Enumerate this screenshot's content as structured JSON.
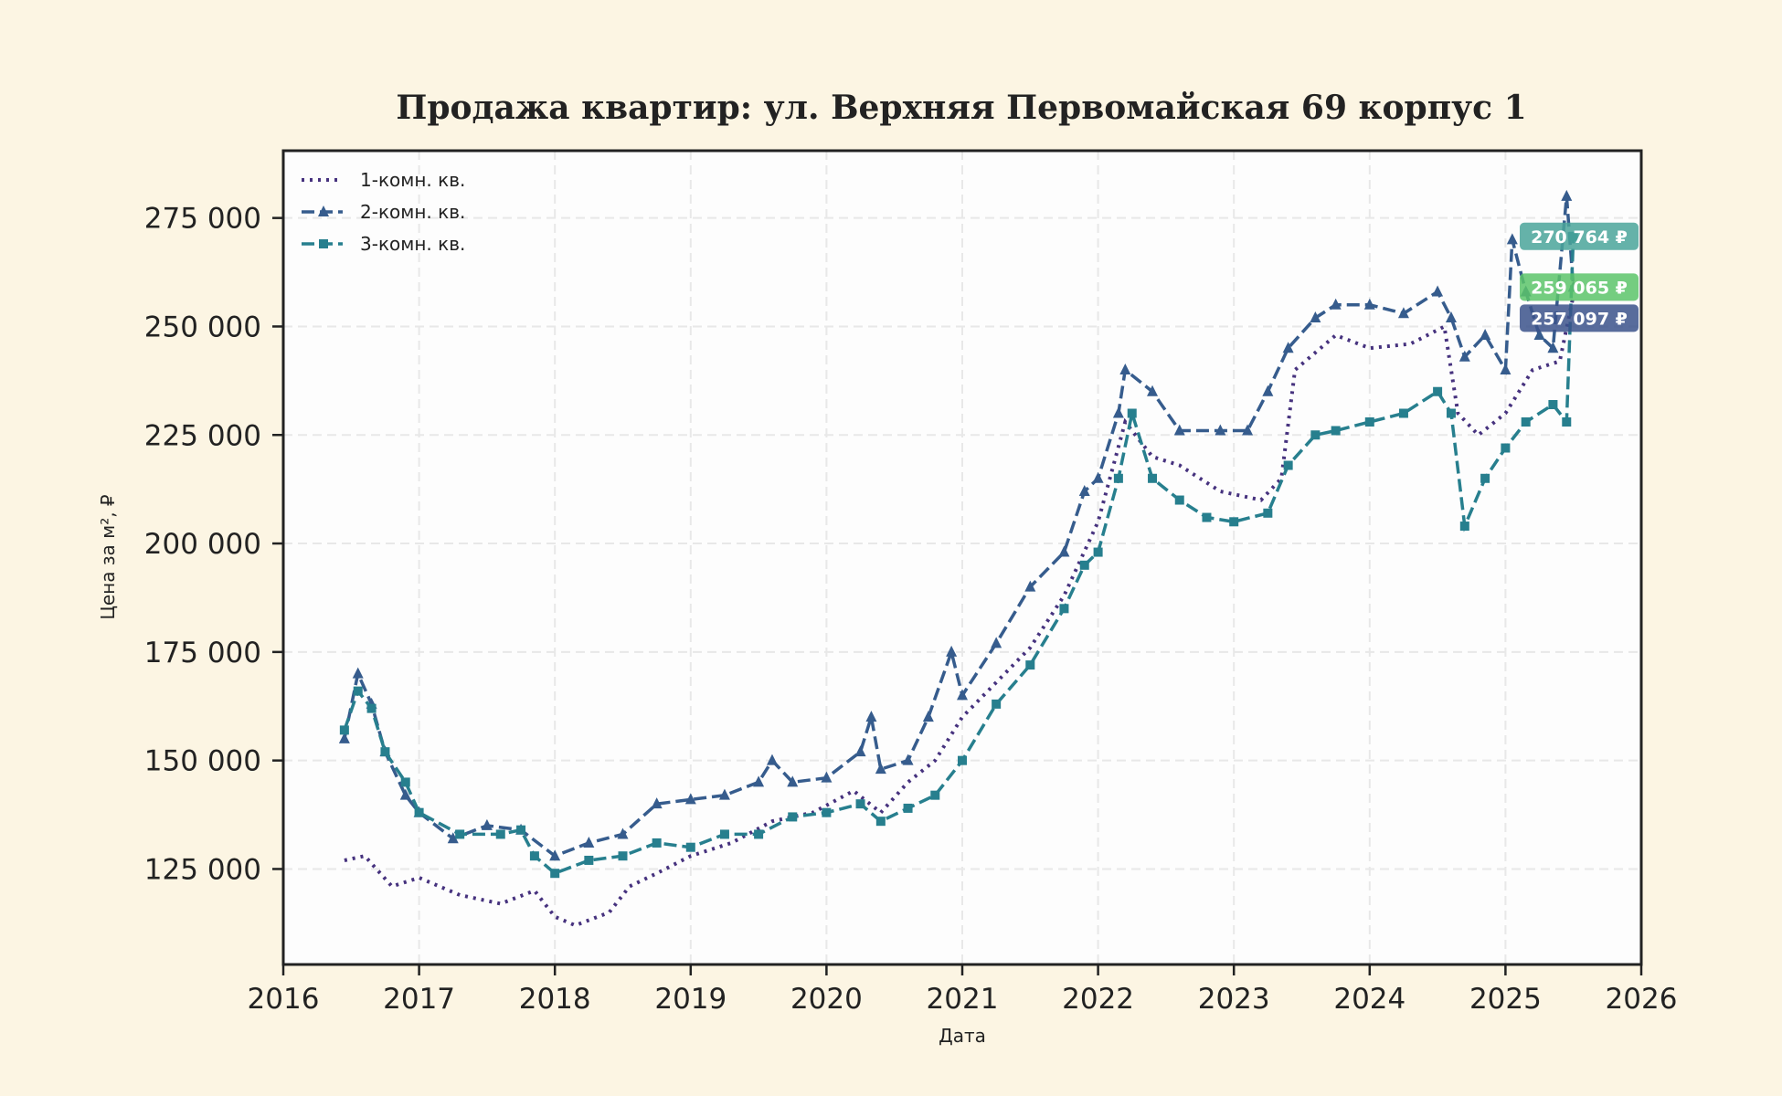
{
  "chart_data": {
    "type": "line",
    "title": "Продажа квартир: ул. Верхняя Первомайская 69 корпус 1",
    "xlabel": "Дата",
    "ylabel": "Цена за м², ₽",
    "xlim": [
      2016,
      2026
    ],
    "ylim": [
      103000,
      290500
    ],
    "x_ticks": [
      "2016",
      "2017",
      "2018",
      "2019",
      "2020",
      "2021",
      "2022",
      "2023",
      "2024",
      "2025",
      "2026"
    ],
    "y_ticks": [
      125000,
      150000,
      175000,
      200000,
      225000,
      250000,
      275000
    ],
    "y_tick_labels": [
      "125 000",
      "150 000",
      "175 000",
      "200 000",
      "225 000",
      "250 000",
      "275 000"
    ],
    "grid": true,
    "legend_position": "top-left",
    "series": [
      {
        "name": "1-комн. кв.",
        "color": "#46327e",
        "style": "dotted",
        "marker": "none",
        "x": [
          2016.45,
          2016.6,
          2016.8,
          2017.0,
          2017.3,
          2017.6,
          2017.85,
          2018.0,
          2018.15,
          2018.4,
          2018.55,
          2018.75,
          2019.0,
          2019.3,
          2019.6,
          2019.9,
          2020.2,
          2020.4,
          2020.6,
          2020.8,
          2021.0,
          2021.25,
          2021.5,
          2021.75,
          2022.0,
          2022.2,
          2022.4,
          2022.6,
          2022.9,
          2023.2,
          2023.35,
          2023.45,
          2023.75,
          2024.0,
          2024.3,
          2024.55,
          2024.65,
          2024.8,
          2025.0,
          2025.2,
          2025.4,
          2025.5
        ],
        "y": [
          127000,
          128000,
          121000,
          123000,
          119000,
          117000,
          120000,
          114000,
          112000,
          115000,
          121000,
          124000,
          128000,
          131000,
          136000,
          138000,
          143000,
          138000,
          145000,
          150000,
          160000,
          168000,
          176000,
          188000,
          205000,
          228000,
          220000,
          218000,
          212000,
          210000,
          215000,
          240000,
          248000,
          245000,
          246000,
          250000,
          230000,
          225000,
          230000,
          240000,
          242000,
          257097
        ]
      },
      {
        "name": "2-комн. кв.",
        "color": "#365c8d",
        "style": "dashed",
        "marker": "triangle",
        "x": [
          2016.45,
          2016.55,
          2016.65,
          2016.75,
          2016.9,
          2017.0,
          2017.25,
          2017.5,
          2017.75,
          2018.0,
          2018.25,
          2018.5,
          2018.75,
          2019.0,
          2019.25,
          2019.5,
          2019.6,
          2019.75,
          2020.0,
          2020.25,
          2020.33,
          2020.4,
          2020.6,
          2020.75,
          2020.92,
          2021.0,
          2021.25,
          2021.5,
          2021.75,
          2021.9,
          2022.0,
          2022.15,
          2022.2,
          2022.4,
          2022.6,
          2022.9,
          2023.1,
          2023.25,
          2023.4,
          2023.6,
          2023.75,
          2024.0,
          2024.25,
          2024.5,
          2024.6,
          2024.7,
          2024.85,
          2025.0,
          2025.05,
          2025.15,
          2025.25,
          2025.35,
          2025.45,
          2025.5
        ],
        "y": [
          155000,
          170000,
          163000,
          152000,
          142000,
          138000,
          132000,
          135000,
          134000,
          128000,
          131000,
          133000,
          140000,
          141000,
          142000,
          145000,
          150000,
          145000,
          146000,
          152000,
          160000,
          148000,
          150000,
          160000,
          175000,
          165000,
          177000,
          190000,
          198000,
          212000,
          215000,
          230000,
          240000,
          235000,
          226000,
          226000,
          226000,
          235000,
          245000,
          252000,
          255000,
          255000,
          253000,
          258000,
          252000,
          243000,
          248000,
          240000,
          270000,
          258000,
          248000,
          245000,
          280000,
          259065
        ]
      },
      {
        "name": "3-комн. кв.",
        "color": "#277f8e",
        "style": "dashed",
        "marker": "square",
        "x": [
          2016.45,
          2016.55,
          2016.65,
          2016.75,
          2016.9,
          2017.0,
          2017.3,
          2017.6,
          2017.75,
          2017.85,
          2018.0,
          2018.25,
          2018.5,
          2018.75,
          2019.0,
          2019.25,
          2019.5,
          2019.75,
          2020.0,
          2020.25,
          2020.4,
          2020.6,
          2020.8,
          2021.0,
          2021.25,
          2021.5,
          2021.75,
          2021.9,
          2022.0,
          2022.15,
          2022.25,
          2022.4,
          2022.6,
          2022.8,
          2023.0,
          2023.25,
          2023.4,
          2023.6,
          2023.75,
          2024.0,
          2024.25,
          2024.5,
          2024.6,
          2024.7,
          2024.85,
          2025.0,
          2025.15,
          2025.35,
          2025.45,
          2025.5
        ],
        "y": [
          157000,
          166000,
          162000,
          152000,
          145000,
          138000,
          133000,
          133000,
          134000,
          128000,
          124000,
          127000,
          128000,
          131000,
          130000,
          133000,
          133000,
          137000,
          138000,
          140000,
          136000,
          139000,
          142000,
          150000,
          163000,
          172000,
          185000,
          195000,
          198000,
          215000,
          230000,
          215000,
          210000,
          206000,
          205000,
          207000,
          218000,
          225000,
          226000,
          228000,
          230000,
          235000,
          230000,
          204000,
          215000,
          222000,
          228000,
          232000,
          228000,
          270764
        ]
      }
    ],
    "annotations": [
      {
        "text": "270 764 ₽",
        "value": 270764,
        "color": "#4aa59a"
      },
      {
        "text": "257 097 ₽",
        "value": 257097,
        "color": "#3b528b"
      },
      {
        "text": "259 065 ₽",
        "value": 259065,
        "color": "#5cc46a"
      }
    ]
  }
}
